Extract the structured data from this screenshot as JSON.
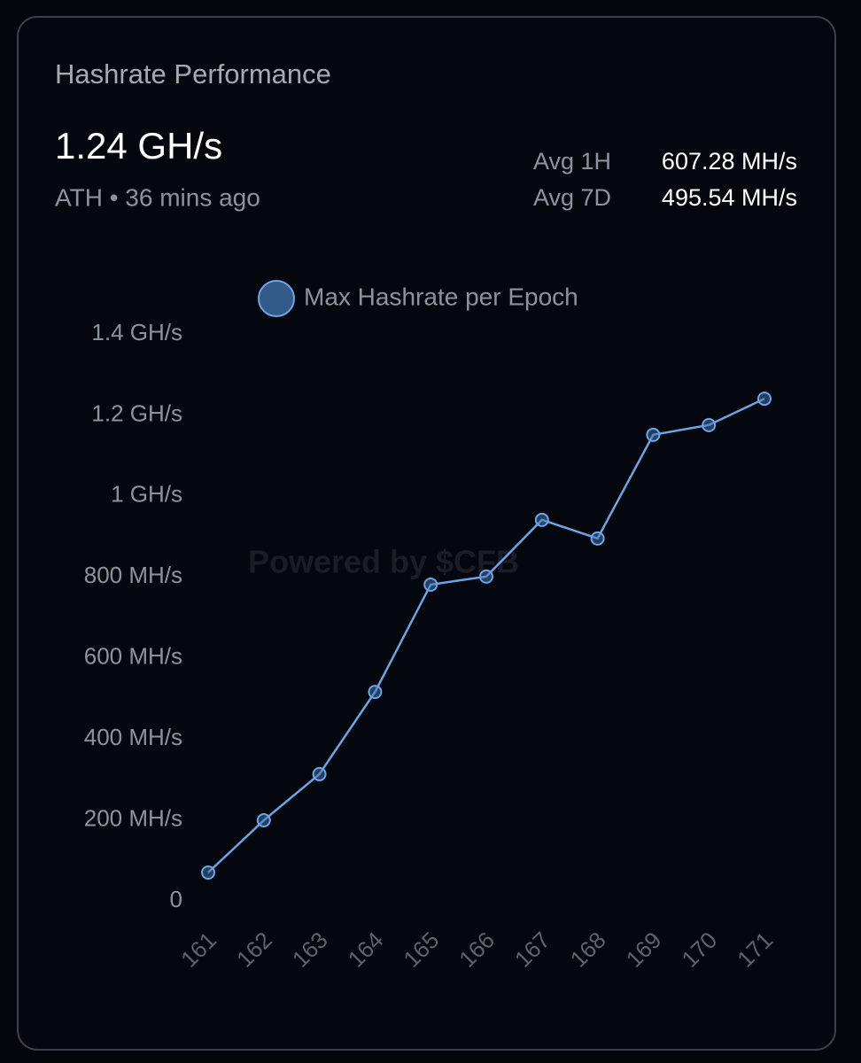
{
  "header": {
    "title": "Hashrate Performance",
    "peak": "1.24 GH/s",
    "peak_note": "ATH • 36 mins ago",
    "stats": [
      {
        "label": "Avg 1H",
        "value": "607.28 MH/s"
      },
      {
        "label": "Avg 7D",
        "value": "495.54 MH/s"
      }
    ]
  },
  "chart_data": {
    "type": "line",
    "watermark": "Powered by $CFB",
    "categories": [
      "161",
      "162",
      "163",
      "164",
      "165",
      "166",
      "167",
      "168",
      "169",
      "170",
      "171"
    ],
    "series": [
      {
        "name": "Max Hashrate per Epoch",
        "color": "#6aa5e6",
        "values": [
          70,
          199,
          313,
          516,
          781,
          801,
          941,
          895,
          1151,
          1175,
          1240
        ]
      }
    ],
    "ylim": [
      0,
      1400
    ],
    "yticks": [
      0,
      {
        "value": 200,
        "label": "200 MH/s"
      },
      {
        "value": 400,
        "label": "400 MH/s"
      },
      {
        "value": 600,
        "label": "600 MH/s"
      },
      {
        "value": 800,
        "label": "800 MH/s"
      },
      {
        "value": 1000,
        "label": "1 GH/s"
      },
      {
        "value": 1200,
        "label": "1.2 GH/s"
      },
      {
        "value": 1400,
        "label": "1.4 GH/s"
      }
    ],
    "grid": false,
    "legend": "top"
  }
}
